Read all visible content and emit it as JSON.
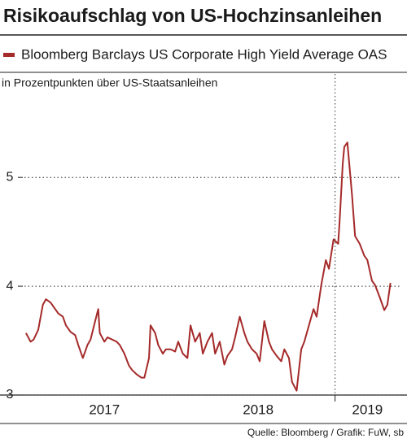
{
  "chart_data": {
    "type": "line",
    "title": "Risikoaufschlag von US-Hochzinsanleihen",
    "subtitle": "in Prozentpunkten über US-Staatsanleihen",
    "source": "Quelle: Bloomberg / Grafik: FuW, sb",
    "x": [
      2016.99,
      2017.02,
      2017.04,
      2017.07,
      2017.1,
      2017.12,
      2017.15,
      2017.17,
      2017.2,
      2017.23,
      2017.25,
      2017.28,
      2017.31,
      2017.33,
      2017.36,
      2017.39,
      2017.41,
      2017.44,
      2017.46,
      2017.47,
      2017.5,
      2017.52,
      2017.55,
      2017.58,
      2017.6,
      2017.63,
      2017.66,
      2017.68,
      2017.71,
      2017.74,
      2017.76,
      2017.79,
      2017.8,
      2017.83,
      2017.85,
      2017.88,
      2017.9,
      2017.93,
      2017.96,
      2017.98,
      2018.01,
      2018.04,
      2018.06,
      2018.09,
      2018.12,
      2018.14,
      2018.17,
      2018.2,
      2018.22,
      2018.25,
      2018.28,
      2018.3,
      2018.33,
      2018.35,
      2018.38,
      2018.41,
      2018.43,
      2018.46,
      2018.49,
      2018.51,
      2018.54,
      2018.57,
      2018.59,
      2018.62,
      2018.65,
      2018.67,
      2018.7,
      2018.72,
      2018.75,
      2018.78,
      2018.8,
      2018.83,
      2018.86,
      2018.88,
      2018.91,
      2018.94,
      2018.96,
      2018.99,
      2019.02,
      2019.03,
      2019.05,
      2019.06,
      2019.08,
      2019.11,
      2019.13,
      2019.16,
      2019.19,
      2019.21,
      2019.24,
      2019.26,
      2019.29,
      2019.32,
      2019.34,
      2019.36
    ],
    "series": [
      {
        "name": "Bloomberg Barclays US Corporate High Yield Average OAS",
        "color": "#a52a2a",
        "values": [
          3.57,
          3.49,
          3.51,
          3.6,
          3.83,
          3.88,
          3.85,
          3.81,
          3.75,
          3.72,
          3.64,
          3.58,
          3.55,
          3.46,
          3.34,
          3.46,
          3.51,
          3.68,
          3.79,
          3.57,
          3.49,
          3.53,
          3.51,
          3.49,
          3.46,
          3.38,
          3.27,
          3.23,
          3.19,
          3.16,
          3.16,
          3.34,
          3.64,
          3.57,
          3.46,
          3.38,
          3.42,
          3.42,
          3.4,
          3.49,
          3.38,
          3.34,
          3.64,
          3.49,
          3.57,
          3.38,
          3.49,
          3.57,
          3.38,
          3.49,
          3.28,
          3.36,
          3.42,
          3.53,
          3.72,
          3.57,
          3.49,
          3.42,
          3.38,
          3.31,
          3.68,
          3.49,
          3.42,
          3.36,
          3.31,
          3.42,
          3.34,
          3.12,
          3.04,
          3.42,
          3.49,
          3.64,
          3.79,
          3.72,
          4.01,
          4.24,
          4.16,
          4.43,
          4.39,
          4.61,
          5.13,
          5.28,
          5.32,
          4.84,
          4.46,
          4.39,
          4.28,
          4.24,
          4.05,
          4.01,
          3.9,
          3.78,
          3.83,
          4.03
        ]
      }
    ],
    "xlim": [
      2016.98,
      2019.42
    ],
    "xticks": [
      {
        "value": 2017.5,
        "label": "2017"
      },
      {
        "value": 2018.5,
        "label": "2018"
      },
      {
        "value": 2019.21,
        "label": "2019"
      }
    ],
    "vlines": [
      2019
    ],
    "ylim": [
      3,
      5.95
    ],
    "yticks": [
      3,
      4,
      5
    ],
    "grid": true
  }
}
